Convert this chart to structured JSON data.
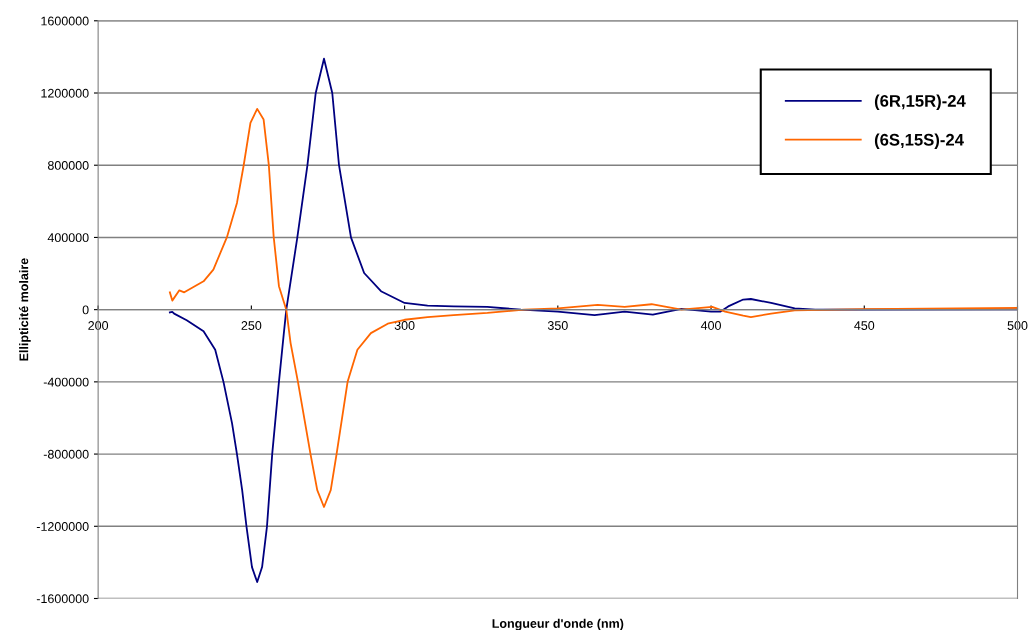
{
  "chart_data": {
    "type": "line",
    "xlabel": "Longueur d'onde (nm)",
    "ylabel": "Ellipticité molaire",
    "xlim": [
      200,
      500
    ],
    "xticks": [
      200,
      250,
      300,
      350,
      400,
      450,
      500
    ],
    "ylim": [
      -1600000,
      1600000
    ],
    "yticks": [
      -1600000,
      -1200000,
      -800000,
      -400000,
      0,
      400000,
      800000,
      1200000,
      1600000
    ],
    "grid": "y",
    "legend": "top right",
    "marker": "none",
    "line_style": "solid",
    "series": [
      {
        "name": "(6R,15R)-24",
        "color": "#000080",
        "x": [
          223.4,
          224.2,
          224.8,
          228.9,
          234.4,
          238.2,
          240.9,
          243.7,
          245.3,
          247,
          248.4,
          250.2,
          251.9,
          253.5,
          255.1,
          256.8,
          259,
          260.6,
          261.4,
          265,
          268.3,
          271,
          273.7,
          276.4,
          278.6,
          282.5,
          286.8,
          292.3,
          300,
          307.5,
          316,
          327,
          338,
          350,
          362,
          371.8,
          381,
          390.3,
          400,
          403,
          405.6,
          410.5,
          413,
          419.6,
          427.3,
          434,
          500
        ],
        "values": [
          -15000,
          -12000,
          -22000,
          -59000,
          -120000,
          -222000,
          -400000,
          -630000,
          -800000,
          -1000000,
          -1200000,
          -1426000,
          -1509000,
          -1426000,
          -1200000,
          -800000,
          -400000,
          -130000,
          0,
          400000,
          800000,
          1200000,
          1390000,
          1200000,
          800000,
          400000,
          203000,
          102000,
          37000,
          22000,
          18000,
          15000,
          0,
          -11000,
          -30000,
          -11000,
          -28000,
          4000,
          -11000,
          -11000,
          18000,
          56000,
          59000,
          37000,
          7000,
          0,
          2000
        ]
      },
      {
        "name": "(6S,15S)-24",
        "color": "#ff6600",
        "x": [
          223.4,
          224.2,
          226.5,
          228.1,
          234.4,
          237.6,
          242,
          245.3,
          247.5,
          249.7,
          251.9,
          254,
          255.7,
          257.3,
          259,
          261.4,
          262.8,
          265.2,
          269.3,
          271.5,
          273.7,
          275.9,
          277.8,
          281.4,
          284.6,
          289,
          294.5,
          300,
          307.5,
          316,
          327,
          339,
          350,
          363,
          371.8,
          380.6,
          390.3,
          400.4,
          404.6,
          410.5,
          413,
          419.6,
          427.3,
          450,
          500
        ],
        "values": [
          96000,
          50000,
          107000,
          96000,
          157000,
          222000,
          400000,
          591000,
          800000,
          1035000,
          1112000,
          1053000,
          800000,
          400000,
          130000,
          0,
          -185000,
          -400000,
          -800000,
          -1000000,
          -1093000,
          -1000000,
          -800000,
          -400000,
          -222000,
          -130000,
          -78000,
          -56000,
          -41000,
          -30000,
          -18000,
          0,
          7000,
          26000,
          15000,
          30000,
          0,
          15000,
          -11000,
          -33000,
          -41000,
          -22000,
          -4000,
          3000,
          10000
        ]
      }
    ]
  }
}
